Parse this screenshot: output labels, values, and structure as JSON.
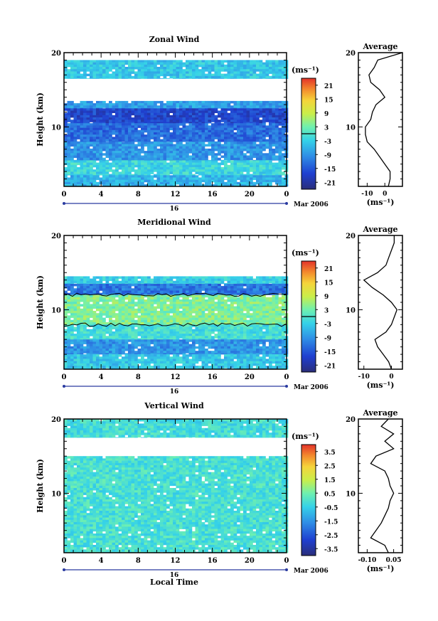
{
  "figure": {
    "x_axis_label": "Local Time",
    "day_label": "16",
    "month_label": "Mar 2006",
    "y_axis_label": "Height (km)",
    "unit_label": "(ms⁻¹)",
    "profile_title": "Average",
    "profile_unit": "(ms⁻¹)"
  },
  "chart_data": [
    {
      "type": "heatmap",
      "title": "Zonal Wind",
      "xlabel": "",
      "ylabel": "Height (km)",
      "x_ticks": [
        "0",
        "4",
        "8",
        "12",
        "16",
        "20",
        "0"
      ],
      "xlim": [
        0,
        24
      ],
      "y_ticks": [
        "20",
        "10"
      ],
      "ylim": [
        2,
        20
      ],
      "colorbar_ticks": [
        "21",
        "15",
        "9",
        "3",
        "-3",
        "-9",
        "-15",
        "-21"
      ],
      "color_range": [
        -24,
        24
      ],
      "zero_contour": true,
      "layers": [
        {
          "z_from": 19,
          "z_to": 20,
          "value": null
        },
        {
          "z_from": 16.5,
          "z_to": 19,
          "value": -4
        },
        {
          "z_from": 13.5,
          "z_to": 16.5,
          "value": null
        },
        {
          "z_from": 12.5,
          "z_to": 13.5,
          "value": -8
        },
        {
          "z_from": 10.5,
          "z_to": 12.5,
          "value": -17
        },
        {
          "z_from": 8,
          "z_to": 10.5,
          "value": -13
        },
        {
          "z_from": 5.5,
          "z_to": 8,
          "value": -9
        },
        {
          "z_from": 3.5,
          "z_to": 5.5,
          "value": -2
        },
        {
          "z_from": 2,
          "z_to": 3.5,
          "value": -6
        }
      ],
      "profile": {
        "title": "Average",
        "x_ticks": [
          "-10",
          "0"
        ],
        "xlim": [
          -15,
          10
        ],
        "y_ticks": [
          "20",
          "10"
        ],
        "heights": [
          2,
          3,
          4,
          5,
          6,
          7,
          8,
          9,
          10,
          11,
          12,
          13,
          14,
          15,
          16,
          17,
          18,
          19,
          20
        ],
        "values": [
          2,
          3,
          3,
          0,
          -3,
          -6,
          -10,
          -11,
          -11,
          -8,
          -7,
          -5,
          0,
          -3,
          -8,
          -9,
          -6,
          -4,
          10
        ]
      }
    },
    {
      "type": "heatmap",
      "title": "Meridional Wind",
      "xlabel": "",
      "ylabel": "Height (km)",
      "x_ticks": [
        "0",
        "4",
        "8",
        "12",
        "16",
        "20",
        "0"
      ],
      "xlim": [
        0,
        24
      ],
      "y_ticks": [
        "20",
        "10"
      ],
      "ylim": [
        2,
        20
      ],
      "colorbar_ticks": [
        "21",
        "15",
        "9",
        "3",
        "-3",
        "-9",
        "-15",
        "-21"
      ],
      "color_range": [
        -24,
        24
      ],
      "zero_contour": true,
      "layers": [
        {
          "z_from": 14.5,
          "z_to": 20,
          "value": null
        },
        {
          "z_from": 13.5,
          "z_to": 14.5,
          "value": -3
        },
        {
          "z_from": 12,
          "z_to": 13.5,
          "value": -12
        },
        {
          "z_from": 8,
          "z_to": 12,
          "value": 4
        },
        {
          "z_from": 6,
          "z_to": 8,
          "value": -1
        },
        {
          "z_from": 4,
          "z_to": 6,
          "value": -9
        },
        {
          "z_from": 2,
          "z_to": 4,
          "value": -4
        }
      ],
      "profile": {
        "title": "Average",
        "x_ticks": [
          "-10",
          "0"
        ],
        "xlim": [
          -12,
          4
        ],
        "y_ticks": [
          "20",
          "10"
        ],
        "heights": [
          2,
          3,
          4,
          5,
          6,
          7,
          8,
          9,
          10,
          11,
          12,
          13,
          14,
          15,
          16,
          17,
          18,
          19,
          20
        ],
        "values": [
          0,
          -1,
          -3,
          -5,
          -6,
          -2,
          0,
          1,
          2,
          0,
          -3,
          -7,
          -10,
          -5,
          -2,
          -1,
          0,
          1,
          1
        ]
      }
    },
    {
      "type": "heatmap",
      "title": "Vertical Wind",
      "xlabel": "Local Time",
      "ylabel": "Height (km)",
      "x_ticks": [
        "0",
        "4",
        "8",
        "12",
        "16",
        "20",
        "0"
      ],
      "xlim": [
        0,
        24
      ],
      "y_ticks": [
        "20",
        "10"
      ],
      "ylim": [
        2,
        20
      ],
      "colorbar_ticks": [
        "3.5",
        "2.5",
        "1.5",
        "0.5",
        "-0.5",
        "-1.5",
        "-2.5",
        "-3.5"
      ],
      "color_range": [
        -4,
        4
      ],
      "zero_contour": false,
      "layers": [
        {
          "z_from": 17.5,
          "z_to": 20,
          "value": -0.2
        },
        {
          "z_from": 15,
          "z_to": 17.5,
          "value": null
        },
        {
          "z_from": 2,
          "z_to": 15,
          "value": -0.1
        }
      ],
      "profile": {
        "title": "Average",
        "x_ticks": [
          "-0.10",
          "0.05"
        ],
        "xlim": [
          -0.15,
          0.1
        ],
        "y_ticks": [
          "20",
          "10"
        ],
        "heights": [
          2,
          3,
          4,
          5,
          6,
          7,
          8,
          9,
          10,
          11,
          12,
          13,
          14,
          15,
          16,
          17,
          18,
          19,
          20
        ],
        "values": [
          0.02,
          0.0,
          -0.08,
          -0.05,
          -0.02,
          0.0,
          0.02,
          0.03,
          0.05,
          0.03,
          0.02,
          0.0,
          -0.08,
          -0.05,
          0.05,
          0.0,
          0.05,
          -0.02,
          0.02
        ]
      }
    }
  ]
}
